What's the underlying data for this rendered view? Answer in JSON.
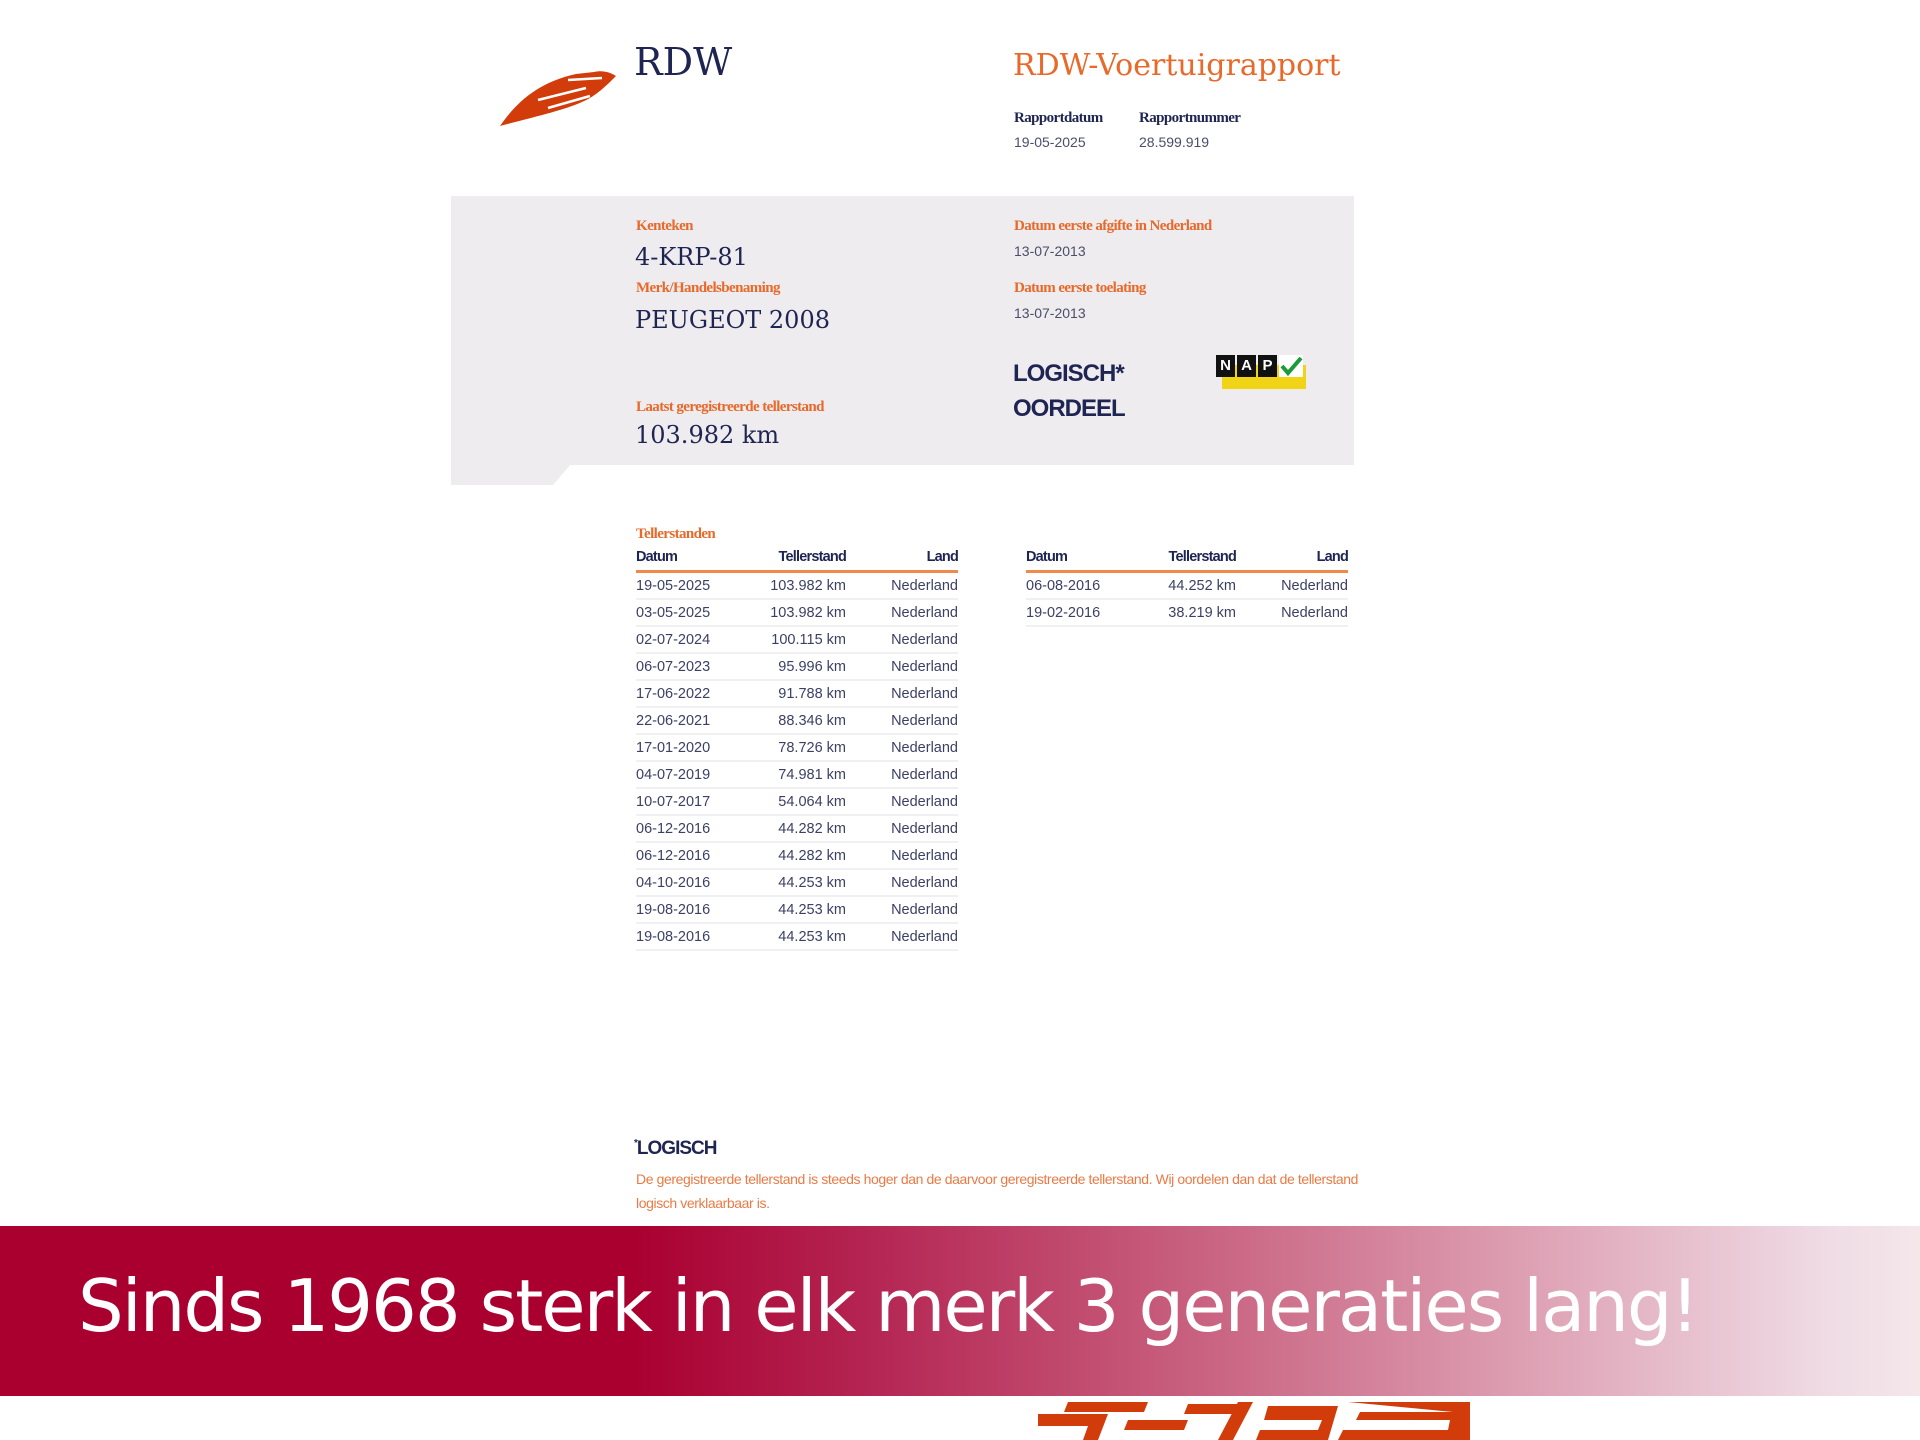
{
  "header": {
    "brand": "RDW",
    "report_title": "RDW-Voertuigrapport",
    "report_date_label": "Rapportdatum",
    "report_date": "19-05-2025",
    "report_number_label": "Rapportnummer",
    "report_number": "28.599.919"
  },
  "vehicle": {
    "plate_label": "Kenteken",
    "plate": "4-KRP-81",
    "make_label": "Merk/Handelsbenaming",
    "make": "PEUGEOT 2008",
    "first_nl_label": "Datum eerste afgifte in Nederland",
    "first_nl": "13-07-2013",
    "first_admission_label": "Datum eerste toelating",
    "first_admission": "13-07-2013",
    "verdict": "LOGISCH*",
    "verdict_label": "OORDEEL",
    "last_odometer_label": "Laatst geregistreerde tellerstand",
    "last_odometer": "103.982 km",
    "nap_badge": [
      "N",
      "A",
      "P"
    ]
  },
  "odometer": {
    "title": "Tellerstanden",
    "columns": [
      "Datum",
      "Tellerstand",
      "Land"
    ],
    "left_rows": [
      [
        "19-05-2025",
        "103.982 km",
        "Nederland"
      ],
      [
        "03-05-2025",
        "103.982 km",
        "Nederland"
      ],
      [
        "02-07-2024",
        "100.115 km",
        "Nederland"
      ],
      [
        "06-07-2023",
        "95.996 km",
        "Nederland"
      ],
      [
        "17-06-2022",
        "91.788 km",
        "Nederland"
      ],
      [
        "22-06-2021",
        "88.346 km",
        "Nederland"
      ],
      [
        "17-01-2020",
        "78.726 km",
        "Nederland"
      ],
      [
        "04-07-2019",
        "74.981 km",
        "Nederland"
      ],
      [
        "10-07-2017",
        "54.064 km",
        "Nederland"
      ],
      [
        "06-12-2016",
        "44.282 km",
        "Nederland"
      ],
      [
        "06-12-2016",
        "44.282 km",
        "Nederland"
      ],
      [
        "04-10-2016",
        "44.253 km",
        "Nederland"
      ],
      [
        "19-08-2016",
        "44.253 km",
        "Nederland"
      ],
      [
        "19-08-2016",
        "44.253 km",
        "Nederland"
      ]
    ],
    "right_rows": [
      [
        "06-08-2016",
        "44.252 km",
        "Nederland"
      ],
      [
        "19-02-2016",
        "38.219 km",
        "Nederland"
      ]
    ]
  },
  "footnote": {
    "title": "LOGISCH",
    "text": "De geregistreerde tellerstand is steeds hoger dan de daarvoor geregistreerde tellerstand. Wij oordelen dan dat de tellerstand logisch verklaarbaar is."
  },
  "banner": {
    "text": "Sinds 1968 sterk in elk merk 3 generaties lang!",
    "color": "#aa0030"
  },
  "colors": {
    "accent": "#e8692a",
    "navy": "#1f2552",
    "logo": "#d23c0a"
  }
}
